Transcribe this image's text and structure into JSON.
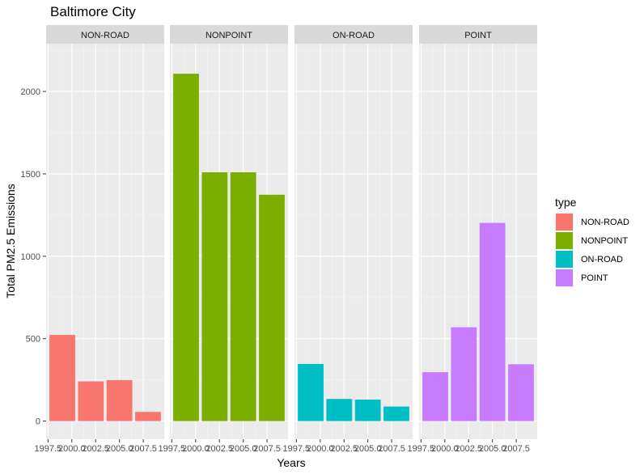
{
  "chart_data": {
    "type": "bar",
    "title": "Baltimore City",
    "xlabel": "Years",
    "ylabel": "Total PM2.5 Emissions",
    "x_ticks": [
      "1997.5",
      "2000.0",
      "2002.5",
      "2005.0",
      "2007.5"
    ],
    "y_ticks": [
      0,
      500,
      1000,
      1500,
      2000
    ],
    "xlim": [
      1997.3,
      2009.7
    ],
    "ylim": [
      -110,
      2290
    ],
    "grid": true,
    "legend_title": "type",
    "legend_position": "right",
    "categories": [
      1999,
      2002,
      2005,
      2008
    ],
    "series": [
      {
        "name": "NON-ROAD",
        "color": "#F8766D",
        "values": [
          522.94,
          240.85,
          248.93,
          55.82
        ]
      },
      {
        "name": "NONPOINT",
        "color": "#7CAE00",
        "values": [
          2107.63,
          1509.5,
          1509.5,
          1373.21
        ]
      },
      {
        "name": "ON-ROAD",
        "color": "#00BFC4",
        "values": [
          346.82,
          134.31,
          130.43,
          88.28
        ]
      },
      {
        "name": "POINT",
        "color": "#C77CFF",
        "values": [
          296.8,
          569.26,
          1202.49,
          344.98
        ]
      }
    ]
  }
}
